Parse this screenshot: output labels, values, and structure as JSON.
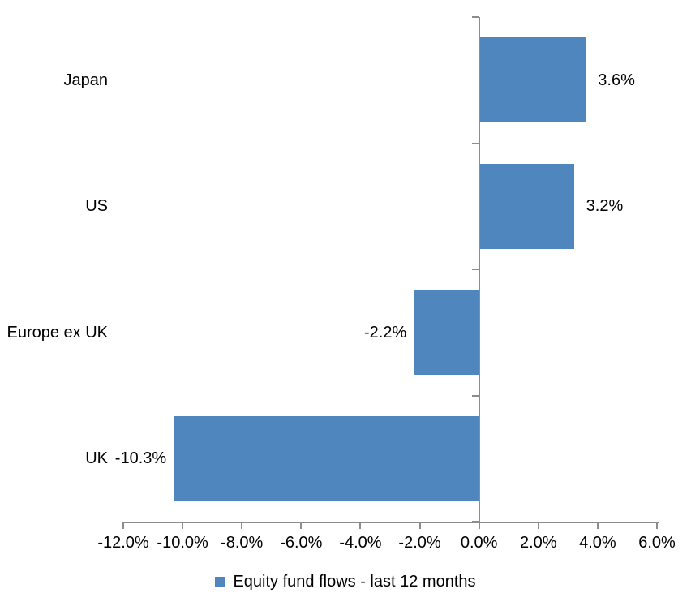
{
  "chart_data": {
    "type": "bar",
    "orientation": "horizontal",
    "title": "",
    "categories": [
      "Japan",
      "US",
      "Europe ex UK",
      "UK"
    ],
    "series": [
      {
        "name": "Equity fund flows - last 12 months",
        "values": [
          3.6,
          3.2,
          -2.2,
          -10.3
        ],
        "value_labels": [
          "3.6%",
          "3.2%",
          "-2.2%",
          "-10.3%"
        ]
      }
    ],
    "xlabel": "",
    "ylabel": "",
    "xlim": [
      -12,
      6
    ],
    "x_tick_values": [
      -12,
      -10,
      -8,
      -6,
      -4,
      -2,
      0,
      2,
      4,
      6
    ],
    "x_tick_labels": [
      "-12.0%",
      "-10.0%",
      "-8.0%",
      "-6.0%",
      "-4.0%",
      "-2.0%",
      "0.0%",
      "2.0%",
      "4.0%",
      "6.0%"
    ],
    "grid": false,
    "legend_position": "bottom"
  },
  "legend": {
    "label": "Equity fund flows - last 12 months"
  },
  "colors": {
    "bar": "#4E86BD",
    "axis": "#8C8C8C",
    "text": "#000000"
  }
}
